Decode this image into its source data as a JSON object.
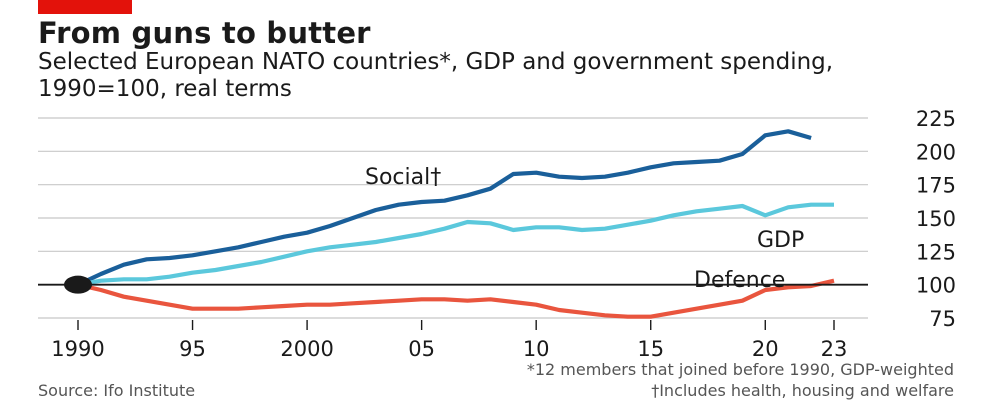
{
  "chart_data": {
    "type": "line",
    "title": "From guns to butter",
    "subtitle": "Selected European NATO countries*, GDP and government spending, 1990=100, real terms",
    "source": "Source: Ifo Institute",
    "notes": [
      "*12 members that joined before 1990, GDP-weighted",
      "†Includes health, housing and welfare"
    ],
    "xlim": [
      1990,
      2023
    ],
    "ylim": [
      75,
      225
    ],
    "y_ticks": [
      75,
      100,
      125,
      150,
      175,
      200,
      225
    ],
    "x_ticks": [
      {
        "value": 1990,
        "label": "1990"
      },
      {
        "value": 1995,
        "label": "95"
      },
      {
        "value": 2000,
        "label": "2000"
      },
      {
        "value": 2005,
        "label": "05"
      },
      {
        "value": 2010,
        "label": "10"
      },
      {
        "value": 2015,
        "label": "15"
      },
      {
        "value": 2020,
        "label": "20"
      },
      {
        "value": 2023,
        "label": "23"
      }
    ],
    "grid": true,
    "y_axis_position": "right",
    "baseline": 100,
    "series": [
      {
        "name": "Social†",
        "color": "#1a5f9a",
        "x": [
          1990,
          1991,
          1992,
          1993,
          1994,
          1995,
          1996,
          1997,
          1998,
          1999,
          2000,
          2001,
          2002,
          2003,
          2004,
          2005,
          2006,
          2007,
          2008,
          2009,
          2010,
          2011,
          2012,
          2013,
          2014,
          2015,
          2016,
          2017,
          2018,
          2019,
          2020,
          2021,
          2022
        ],
        "values": [
          100,
          108,
          115,
          119,
          120,
          122,
          125,
          128,
          132,
          136,
          139,
          144,
          150,
          156,
          160,
          162,
          163,
          167,
          172,
          183,
          184,
          181,
          180,
          181,
          184,
          188,
          191,
          192,
          193,
          198,
          212,
          215,
          210
        ]
      },
      {
        "name": "GDP",
        "color": "#5bc8dc",
        "x": [
          1990,
          1991,
          1992,
          1993,
          1994,
          1995,
          1996,
          1997,
          1998,
          1999,
          2000,
          2001,
          2002,
          2003,
          2004,
          2005,
          2006,
          2007,
          2008,
          2009,
          2010,
          2011,
          2012,
          2013,
          2014,
          2015,
          2016,
          2017,
          2018,
          2019,
          2020,
          2021,
          2022,
          2023
        ],
        "values": [
          100,
          103,
          104,
          104,
          106,
          109,
          111,
          114,
          117,
          121,
          125,
          128,
          130,
          132,
          135,
          138,
          142,
          147,
          146,
          141,
          143,
          143,
          141,
          142,
          145,
          148,
          152,
          155,
          157,
          159,
          152,
          158,
          160,
          160
        ]
      },
      {
        "name": "Defence",
        "color": "#e9553e",
        "x": [
          1990,
          1991,
          1992,
          1993,
          1994,
          1995,
          1996,
          1997,
          1998,
          1999,
          2000,
          2001,
          2002,
          2003,
          2004,
          2005,
          2006,
          2007,
          2008,
          2009,
          2010,
          2011,
          2012,
          2013,
          2014,
          2015,
          2016,
          2017,
          2018,
          2019,
          2020,
          2021,
          2022,
          2023
        ],
        "values": [
          100,
          96,
          91,
          88,
          85,
          82,
          82,
          82,
          83,
          84,
          85,
          85,
          86,
          87,
          88,
          89,
          89,
          88,
          89,
          87,
          85,
          81,
          79,
          77,
          76,
          76,
          79,
          82,
          85,
          88,
          96,
          98,
          99,
          103
        ]
      }
    ],
    "colors": {
      "grid": "#c8c8c8",
      "baseline": "#1a1a1a",
      "origin_marker": "#1a1a1a",
      "text": "#1a1a1a"
    }
  }
}
